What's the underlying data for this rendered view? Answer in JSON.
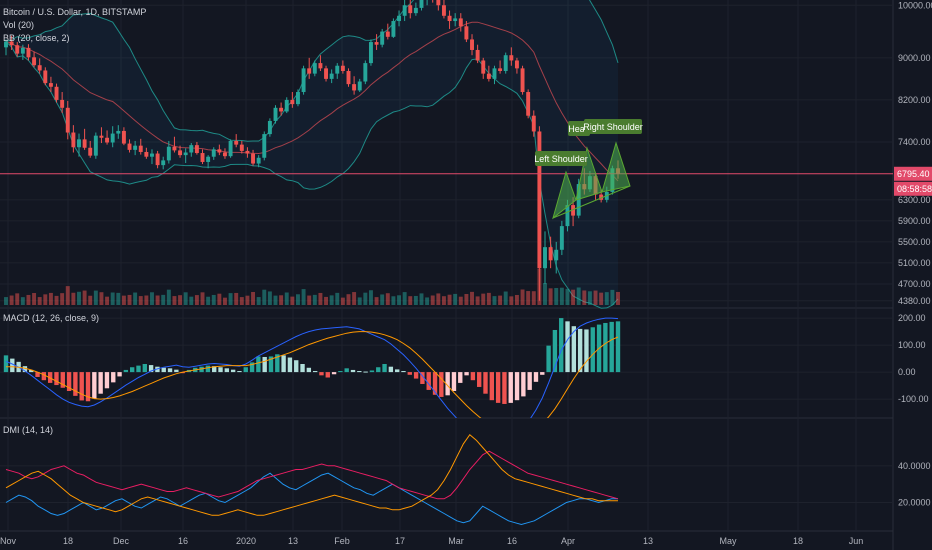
{
  "header": {
    "symbol": "Bitcoin / U.S. Dollar, 1D, BITSTAMP",
    "vol": "Vol (20)",
    "bb": "BB (20, close, 2)"
  },
  "indicators": {
    "macd": "MACD (12, 26, close, 9)",
    "dmi": "DMI (14, 14)"
  },
  "price_tags": {
    "last_price": "6795.40",
    "countdown": "08:58:58"
  },
  "annotations": {
    "left_shoulder": "Left Shoulder",
    "head": "Head",
    "right_shoulder": "Right Shoulder"
  },
  "colors": {
    "background": "#131722",
    "up": "#26a69a",
    "down": "#ef5350",
    "bb_line": "#1e8a86",
    "bb_mid": "#a3404a",
    "macd_line": "#2962ff",
    "signal_line": "#ff9800",
    "di_plus": "#2196f3",
    "di_minus": "#e91e63",
    "adx": "#ff9800",
    "pattern": "#5ba832"
  },
  "chart_data": [
    {
      "type": "candlestick",
      "panel": "price",
      "ylim": [
        4300,
        10100
      ],
      "y_ticks": [
        "10000.00",
        "9000.00",
        "8200.00",
        "7400.00",
        "6300.00",
        "5900.00",
        "5500.00",
        "5100.00",
        "4700.00",
        "4380.00"
      ],
      "x_ticks": [
        "Nov",
        "18",
        "Dec",
        "16",
        "2020",
        "13",
        "Feb",
        "17",
        "Mar",
        "16",
        "Apr",
        "13",
        "May",
        "18",
        "Jun"
      ],
      "horizontal_line": 6795.4,
      "candles": [
        [
          9200,
          9350,
          9050,
          9310
        ],
        [
          9310,
          9420,
          9150,
          9240
        ],
        [
          9240,
          9300,
          9020,
          9080
        ],
        [
          9080,
          9250,
          8960,
          9190
        ],
        [
          9190,
          9260,
          8950,
          9010
        ],
        [
          9010,
          9120,
          8820,
          8860
        ],
        [
          8860,
          8990,
          8700,
          8760
        ],
        [
          8760,
          8820,
          8480,
          8520
        ],
        [
          8520,
          8640,
          8350,
          8450
        ],
        [
          8450,
          8510,
          8150,
          8200
        ],
        [
          8200,
          8350,
          7950,
          8050
        ],
        [
          8050,
          8180,
          7450,
          7580
        ],
        [
          7580,
          7720,
          7200,
          7300
        ],
        [
          7300,
          7560,
          7120,
          7450
        ],
        [
          7450,
          7650,
          7250,
          7290
        ],
        [
          7290,
          7420,
          7100,
          7140
        ],
        [
          7140,
          7580,
          7080,
          7520
        ],
        [
          7520,
          7680,
          7380,
          7480
        ],
        [
          7480,
          7620,
          7350,
          7390
        ],
        [
          7390,
          7700,
          7300,
          7560
        ],
        [
          7560,
          7720,
          7460,
          7610
        ],
        [
          7610,
          7680,
          7340,
          7370
        ],
        [
          7370,
          7450,
          7200,
          7250
        ],
        [
          7250,
          7420,
          7150,
          7330
        ],
        [
          7330,
          7460,
          7160,
          7210
        ],
        [
          7210,
          7290,
          7080,
          7120
        ],
        [
          7120,
          7260,
          6980,
          7180
        ],
        [
          7180,
          7230,
          6900,
          6960
        ],
        [
          6960,
          7120,
          6880,
          7050
        ],
        [
          7050,
          7420,
          6990,
          7310
        ],
        [
          7310,
          7500,
          7200,
          7240
        ],
        [
          7240,
          7330,
          7100,
          7150
        ],
        [
          7150,
          7280,
          7000,
          7200
        ],
        [
          7200,
          7380,
          7120,
          7340
        ],
        [
          7340,
          7400,
          7160,
          7190
        ],
        [
          7190,
          7260,
          6980,
          7020
        ],
        [
          7020,
          7150,
          6900,
          7120
        ],
        [
          7120,
          7300,
          7060,
          7260
        ],
        [
          7260,
          7350,
          7150,
          7200
        ],
        [
          7200,
          7280,
          7080,
          7130
        ],
        [
          7130,
          7450,
          7100,
          7420
        ],
        [
          7420,
          7550,
          7300,
          7350
        ],
        [
          7350,
          7420,
          7180,
          7230
        ],
        [
          7230,
          7300,
          7100,
          7180
        ],
        [
          7180,
          7250,
          6950,
          6990
        ],
        [
          6990,
          7150,
          6920,
          7100
        ],
        [
          7100,
          7600,
          7050,
          7550
        ],
        [
          7550,
          7850,
          7500,
          7800
        ],
        [
          7800,
          8100,
          7750,
          8050
        ],
        [
          8050,
          8150,
          7900,
          7980
        ],
        [
          7980,
          8250,
          7950,
          8200
        ],
        [
          8200,
          8350,
          8050,
          8120
        ],
        [
          8120,
          8400,
          8080,
          8350
        ],
        [
          8350,
          8850,
          8300,
          8800
        ],
        [
          8800,
          9000,
          8600,
          8700
        ],
        [
          8700,
          8950,
          8650,
          8900
        ],
        [
          8900,
          9050,
          8750,
          8800
        ],
        [
          8800,
          8850,
          8550,
          8600
        ],
        [
          8600,
          8780,
          8520,
          8700
        ],
        [
          8700,
          8900,
          8600,
          8850
        ],
        [
          8850,
          8950,
          8700,
          8750
        ],
        [
          8750,
          8800,
          8450,
          8500
        ],
        [
          8500,
          8650,
          8300,
          8380
        ],
        [
          8380,
          8600,
          8350,
          8550
        ],
        [
          8550,
          8950,
          8500,
          8900
        ],
        [
          8900,
          9350,
          8850,
          9300
        ],
        [
          9300,
          9450,
          9150,
          9250
        ],
        [
          9250,
          9550,
          9200,
          9500
        ],
        [
          9500,
          9650,
          9350,
          9400
        ],
        [
          9400,
          9750,
          9380,
          9700
        ],
        [
          9700,
          9900,
          9600,
          9800
        ],
        [
          9800,
          10100,
          9700,
          10000
        ],
        [
          10000,
          10150,
          9750,
          9850
        ],
        [
          9850,
          10050,
          9800,
          9950
        ],
        [
          9950,
          10200,
          9900,
          10150
        ],
        [
          10150,
          10300,
          10000,
          10250
        ],
        [
          10250,
          10350,
          10050,
          10100
        ],
        [
          10100,
          10200,
          9900,
          10000
        ],
        [
          10000,
          10150,
          9750,
          9800
        ],
        [
          9800,
          9900,
          9550,
          9700
        ],
        [
          9700,
          9850,
          9600,
          9750
        ],
        [
          9750,
          9850,
          9500,
          9600
        ],
        [
          9600,
          9700,
          9300,
          9350
        ],
        [
          9350,
          9450,
          9050,
          9150
        ],
        [
          9150,
          9250,
          8900,
          8950
        ],
        [
          8950,
          9000,
          8600,
          8700
        ],
        [
          8700,
          8850,
          8550,
          8600
        ],
        [
          8600,
          8850,
          8500,
          8800
        ],
        [
          8800,
          8950,
          8700,
          8750
        ],
        [
          8750,
          9100,
          8700,
          9050
        ],
        [
          9050,
          9200,
          8850,
          8950
        ],
        [
          8950,
          9000,
          8700,
          8800
        ],
        [
          8800,
          8850,
          8300,
          8350
        ],
        [
          8350,
          8400,
          7850,
          7900
        ],
        [
          7900,
          8000,
          7500,
          7600
        ],
        [
          7600,
          7700,
          4380,
          5000
        ],
        [
          5000,
          5700,
          4700,
          5400
        ],
        [
          5400,
          5600,
          5000,
          5150
        ],
        [
          5150,
          5500,
          4900,
          5350
        ],
        [
          5350,
          5900,
          5250,
          5800
        ],
        [
          5800,
          6300,
          5700,
          6200
        ],
        [
          6200,
          6350,
          5800,
          6000
        ],
        [
          6000,
          6700,
          5950,
          6600
        ],
        [
          6600,
          6900,
          6400,
          6500
        ],
        [
          6500,
          6850,
          6450,
          6750
        ],
        [
          6750,
          6800,
          6300,
          6400
        ],
        [
          6400,
          6500,
          6250,
          6300
        ],
        [
          6300,
          6550,
          6250,
          6450
        ],
        [
          6450,
          6950,
          6400,
          6900
        ],
        [
          6900,
          7050,
          6700,
          6800
        ]
      ]
    },
    {
      "type": "bar",
      "panel": "volume",
      "series_name": "Vol (20)"
    },
    {
      "type": "histogram+line",
      "panel": "macd",
      "ylim": [
        -170,
        230
      ],
      "y_ticks": [
        "200.00",
        "100.00",
        "0.00",
        "-100.00"
      ],
      "x_start_index": 0,
      "histogram": [
        62,
        50,
        38,
        22,
        8,
        -18,
        -30,
        -40,
        -48,
        -58,
        -70,
        -88,
        -105,
        -108,
        -98,
        -80,
        -60,
        -38,
        -16,
        8,
        18,
        24,
        30,
        26,
        20,
        16,
        14,
        9,
        -4,
        8,
        16,
        20,
        24,
        22,
        18,
        14,
        9,
        4,
        18,
        36,
        58,
        56,
        58,
        66,
        62,
        54,
        44,
        30,
        16,
        4,
        -12,
        -20,
        -8,
        4,
        14,
        8,
        4,
        2,
        6,
        18,
        30,
        20,
        10,
        4,
        -10,
        -24,
        -44,
        -66,
        -84,
        -92,
        -86,
        -70,
        -40,
        -12,
        -30,
        -55,
        -80,
        -104,
        -114,
        -118,
        -114,
        -104,
        -90,
        -66,
        -36,
        -10,
        98,
        156,
        200,
        188,
        170,
        160,
        158,
        166,
        176,
        182,
        186,
        188
      ],
      "macd": [
        40,
        30,
        18,
        4,
        -12,
        -30,
        -48,
        -66,
        -84,
        -100,
        -112,
        -120,
        -126,
        -128,
        -122,
        -110,
        -96,
        -80,
        -64,
        -48,
        -34,
        -20,
        -8,
        4,
        12,
        18,
        22,
        26,
        20,
        18,
        22,
        26,
        30,
        32,
        30,
        28,
        24,
        22,
        30,
        44,
        60,
        72,
        84,
        96,
        108,
        120,
        132,
        142,
        150,
        156,
        160,
        162,
        164,
        166,
        168,
        164,
        160,
        150,
        140,
        130,
        120,
        104,
        84,
        64,
        40,
        14,
        -14,
        -44,
        -74,
        -104,
        -134,
        -160,
        -186,
        -210,
        -230,
        -240,
        -246,
        -252,
        -254,
        -250,
        -240,
        -226,
        -204,
        -176,
        -140,
        -96,
        -40,
        20,
        80,
        120,
        150,
        170,
        182,
        190,
        196,
        200,
        200,
        198
      ],
      "signal": [
        20,
        20,
        18,
        14,
        8,
        0,
        -10,
        -22,
        -34,
        -46,
        -58,
        -70,
        -82,
        -92,
        -98,
        -100,
        -98,
        -94,
        -88,
        -80,
        -72,
        -62,
        -52,
        -42,
        -32,
        -22,
        -14,
        -6,
        0,
        4,
        8,
        12,
        16,
        20,
        22,
        24,
        24,
        24,
        24,
        28,
        34,
        40,
        48,
        56,
        64,
        72,
        82,
        92,
        102,
        110,
        118,
        126,
        132,
        138,
        144,
        148,
        150,
        150,
        148,
        144,
        138,
        130,
        120,
        106,
        90,
        70,
        48,
        24,
        0,
        -24,
        -50,
        -76,
        -100,
        -124,
        -146,
        -166,
        -184,
        -200,
        -212,
        -222,
        -228,
        -230,
        -228,
        -220,
        -208,
        -190,
        -166,
        -136,
        -100,
        -62,
        -24,
        10,
        40,
        66,
        88,
        106,
        120,
        130
      ]
    },
    {
      "type": "line",
      "panel": "dmi",
      "ylim": [
        5,
        65
      ],
      "y_ticks": [
        "40.0000",
        "20.0000"
      ],
      "series": [
        {
          "name": "+DI",
          "values": [
            20,
            22,
            24,
            23,
            21,
            18,
            16,
            14,
            13,
            14,
            16,
            18,
            20,
            18,
            16,
            17,
            19,
            21,
            22,
            20,
            18,
            17,
            19,
            21,
            23,
            22,
            20,
            18,
            20,
            22,
            24,
            25,
            23,
            21,
            20,
            22,
            24,
            26,
            28,
            31,
            34,
            36,
            33,
            30,
            28,
            27,
            29,
            31,
            33,
            35,
            36,
            34,
            32,
            30,
            28,
            27,
            25,
            24,
            26,
            28,
            30,
            28,
            26,
            24,
            22,
            20,
            18,
            16,
            14,
            12,
            10,
            9,
            10,
            14,
            18,
            16,
            14,
            12,
            10,
            9,
            8,
            9,
            10,
            12,
            14,
            16,
            18,
            20,
            21,
            22,
            22,
            21,
            20,
            21,
            22,
            22
          ]
        },
        {
          "name": "-DI",
          "values": [
            38,
            37,
            36,
            34,
            33,
            34,
            36,
            38,
            39,
            40,
            38,
            36,
            35,
            33,
            31,
            30,
            29,
            28,
            27,
            28,
            29,
            30,
            29,
            28,
            27,
            26,
            26,
            27,
            28,
            27,
            26,
            25,
            24,
            23,
            24,
            25,
            26,
            28,
            30,
            32,
            33,
            34,
            35,
            36,
            37,
            38,
            38,
            39,
            40,
            41,
            40,
            40,
            39,
            38,
            37,
            36,
            35,
            34,
            33,
            32,
            30,
            28,
            27,
            26,
            25,
            24,
            23,
            22,
            22,
            24,
            28,
            33,
            38,
            42,
            46,
            48,
            46,
            44,
            42,
            40,
            38,
            36,
            35,
            34,
            33,
            32,
            31,
            30,
            29,
            28,
            27,
            26,
            25,
            24,
            23,
            22
          ]
        },
        {
          "name": "ADX",
          "values": [
            28,
            30,
            32,
            34,
            36,
            37,
            35,
            33,
            30,
            27,
            24,
            22,
            20,
            19,
            18,
            17,
            16,
            15,
            16,
            18,
            20,
            22,
            23,
            22,
            21,
            20,
            19,
            18,
            17,
            16,
            15,
            14,
            13,
            13,
            14,
            15,
            16,
            15,
            14,
            13,
            13,
            14,
            15,
            16,
            17,
            18,
            19,
            20,
            21,
            22,
            23,
            24,
            23,
            22,
            21,
            20,
            19,
            18,
            17,
            17,
            16,
            16,
            17,
            18,
            20,
            22,
            24,
            27,
            32,
            38,
            45,
            52,
            57,
            54,
            50,
            46,
            42,
            38,
            35,
            33,
            32,
            31,
            30,
            29,
            28,
            27,
            26,
            25,
            24,
            23,
            22,
            22,
            21,
            21,
            21,
            21
          ]
        }
      ]
    }
  ]
}
